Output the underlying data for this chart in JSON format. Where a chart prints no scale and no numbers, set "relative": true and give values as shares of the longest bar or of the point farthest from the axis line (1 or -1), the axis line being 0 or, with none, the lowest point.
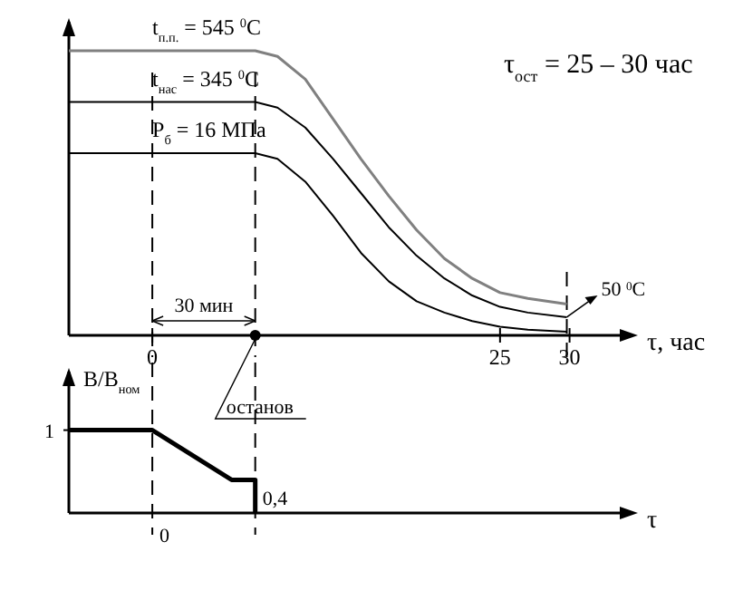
{
  "chart_data": [
    {
      "type": "line",
      "relative": true,
      "xlabel": "τ, час",
      "xlim": [
        -6,
        34
      ],
      "xticks": [
        0,
        25,
        30
      ],
      "series": [
        {
          "name": "t$_{п.п.}$ = 545 $^{0}$C",
          "color": "#808080",
          "x": [
            -6,
            7.4,
            9,
            11,
            13,
            15,
            17,
            19,
            21,
            23,
            25,
            27,
            29.8
          ],
          "values": [
            1,
            1,
            0.98,
            0.9,
            0.76,
            0.62,
            0.49,
            0.37,
            0.27,
            0.2,
            0.15,
            0.13,
            0.11
          ]
        },
        {
          "name": "t$_{нас}$ = 345 $^{0}$C",
          "color": "#000000",
          "x": [
            -6,
            7.4,
            9,
            11,
            13,
            15,
            17,
            19,
            21,
            23,
            25,
            27,
            29.8
          ],
          "values": [
            0.82,
            0.82,
            0.8,
            0.73,
            0.62,
            0.5,
            0.38,
            0.28,
            0.2,
            0.14,
            0.1,
            0.08,
            0.064
          ]
        },
        {
          "name": "P$_{б}$ = 16 МПа",
          "color": "#000000",
          "x": [
            -6,
            7.4,
            9,
            11,
            13,
            15,
            17,
            19,
            21,
            23,
            25,
            27,
            29.8
          ],
          "values": [
            0.64,
            0.64,
            0.62,
            0.54,
            0.42,
            0.29,
            0.19,
            0.12,
            0.08,
            0.05,
            0.03,
            0.02,
            0.013
          ]
        },
        {
          "type": "scatter",
          "color": "#000000",
          "x": [
            7.4
          ],
          "values": [
            0
          ]
        }
      ],
      "ref_lines": [
        {
          "axis": "x",
          "value": 0,
          "line_style": "dashed"
        },
        {
          "axis": "x",
          "value": 7.4,
          "line_style": "dashed"
        },
        {
          "axis": "x",
          "value": 29.8,
          "line_style": "dashed"
        }
      ],
      "annotations": [
        "τ$_{ост}$ = 25 – 30 час",
        "30 мин",
        {
          "text": "останов",
          "x": 7.4,
          "y": 0
        },
        {
          "text": "50 $^{0}$C",
          "x": 29.8,
          "y": 0.064
        }
      ]
    },
    {
      "type": "line",
      "ylabel": "B/B$_{ном}$",
      "xlabel": "τ",
      "xlim": [
        -6,
        34
      ],
      "ylim": [
        0,
        1.75
      ],
      "tick_labels": false,
      "annotations": [
        "0"
      ],
      "series": [
        {
          "color": "#000000",
          "x": [
            -6,
            0,
            5.7,
            7.4,
            7.4
          ],
          "values": [
            1,
            1,
            0.4,
            0.4,
            0
          ],
          "value_labels": [
            "1",
            null,
            null,
            "0,4",
            null
          ]
        }
      ],
      "ref_lines": [
        {
          "axis": "x",
          "value": 0,
          "line_style": "dashed"
        },
        {
          "axis": "x",
          "value": 7.4,
          "line_style": "dashed"
        }
      ]
    }
  ]
}
